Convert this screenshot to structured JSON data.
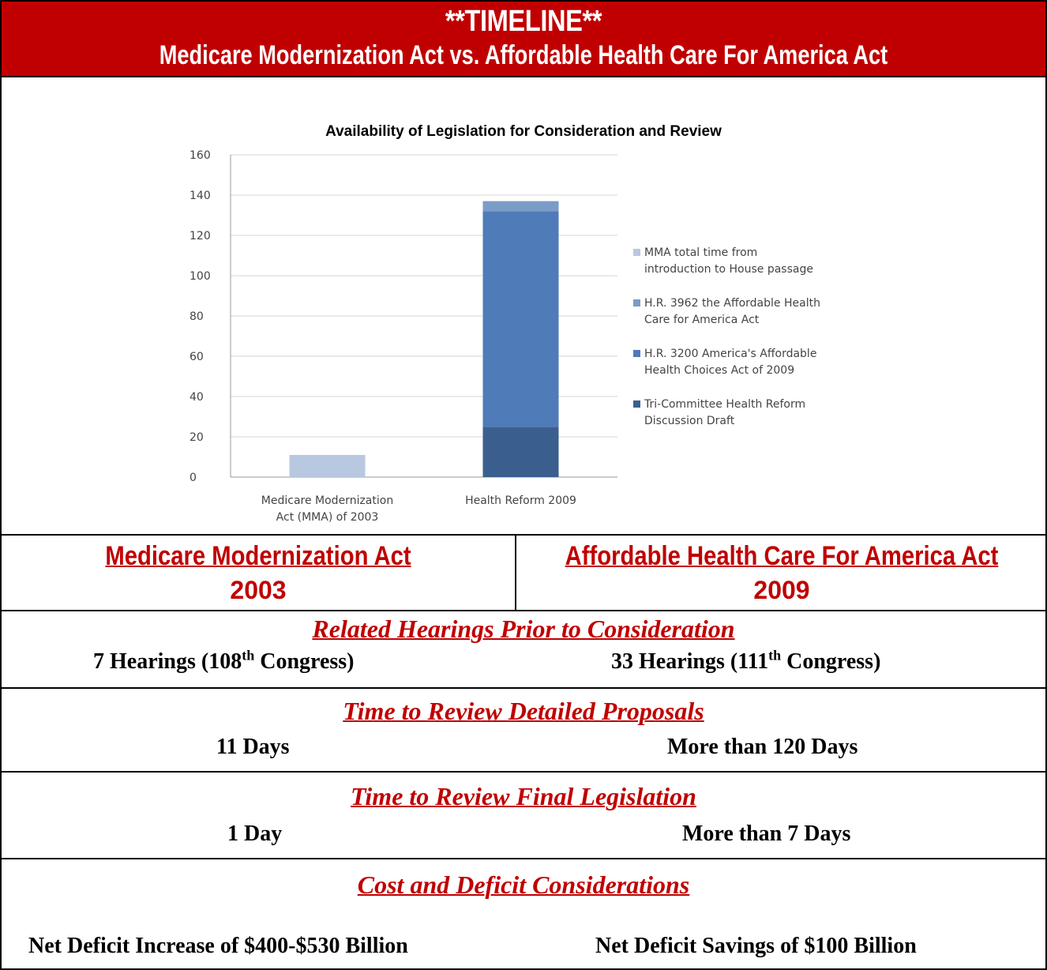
{
  "header": {
    "title": "**TIMELINE**",
    "subtitle": "Medicare Modernization Act vs. Affordable Health Care For America Act"
  },
  "colors": {
    "header_bg": "#c00000",
    "accent_red": "#c00000",
    "series_mma": "#b8c8e0",
    "series_hr3962": "#7a9cc6",
    "series_hr3200": "#4f7bb8",
    "series_tricommittee": "#3a5f8f"
  },
  "chart_data": {
    "type": "bar",
    "stacked": true,
    "title": "Availability of Legislation for Consideration and Review",
    "xlabel": "",
    "ylabel": "",
    "ylim": [
      0,
      160
    ],
    "yticks": [
      0,
      20,
      40,
      60,
      80,
      100,
      120,
      140,
      160
    ],
    "grid": true,
    "legend_position": "right",
    "categories": [
      "Medicare Modernization Act (MMA) of 2003",
      "Health Reform 2009"
    ],
    "category_lines": [
      [
        "Medicare Modernization",
        "Act (MMA) of 2003"
      ],
      [
        "Health Reform 2009"
      ]
    ],
    "series": [
      {
        "name": "Tri-Committee Health Reform Discussion Draft",
        "legend_lines": [
          "Tri-Committee Health Reform",
          "Discussion Draft"
        ],
        "color": "#3a5f8f",
        "values": [
          0,
          25
        ]
      },
      {
        "name": "H.R. 3200 America's Affordable Health Choices Act of 2009",
        "legend_lines": [
          "H.R. 3200 America's Affordable",
          "Health Choices Act of 2009"
        ],
        "color": "#4f7bb8",
        "values": [
          0,
          107
        ]
      },
      {
        "name": "H.R. 3962 the Affordable Health Care for America Act",
        "legend_lines": [
          "H.R. 3962 the Affordable Health",
          "Care for America Act"
        ],
        "color": "#7a9cc6",
        "values": [
          0,
          5
        ]
      },
      {
        "name": "MMA total time from introduction to House passage",
        "legend_lines": [
          "MMA total time from",
          "introduction to House passage"
        ],
        "color": "#b8c8e0",
        "values": [
          11,
          0
        ]
      }
    ],
    "legend_order": [
      3,
      2,
      1,
      0
    ]
  },
  "acts": {
    "left": {
      "name": "Medicare Modernization Act",
      "year": "2003"
    },
    "right": {
      "name": "Affordable Health Care For America Act",
      "year": "2009"
    }
  },
  "sections": {
    "hearings": {
      "title": "Related Hearings Prior to Consideration",
      "left_pre": "7 Hearings (108",
      "left_sup": "th",
      "left_post": " Congress)",
      "right_pre": "33 Hearings (111",
      "right_sup": "th",
      "right_post": " Congress)"
    },
    "proposals": {
      "title": "Time to Review Detailed Proposals",
      "left": "11 Days",
      "right": "More than 120 Days"
    },
    "final": {
      "title": "Time to Review Final Legislation",
      "left": "1 Day",
      "right": "More than 7 Days"
    },
    "cost": {
      "title": "Cost and Deficit Considerations",
      "left": "Net Deficit Increase of $400-$530 Billion",
      "right": "Net Deficit Savings of $100 Billion"
    }
  }
}
